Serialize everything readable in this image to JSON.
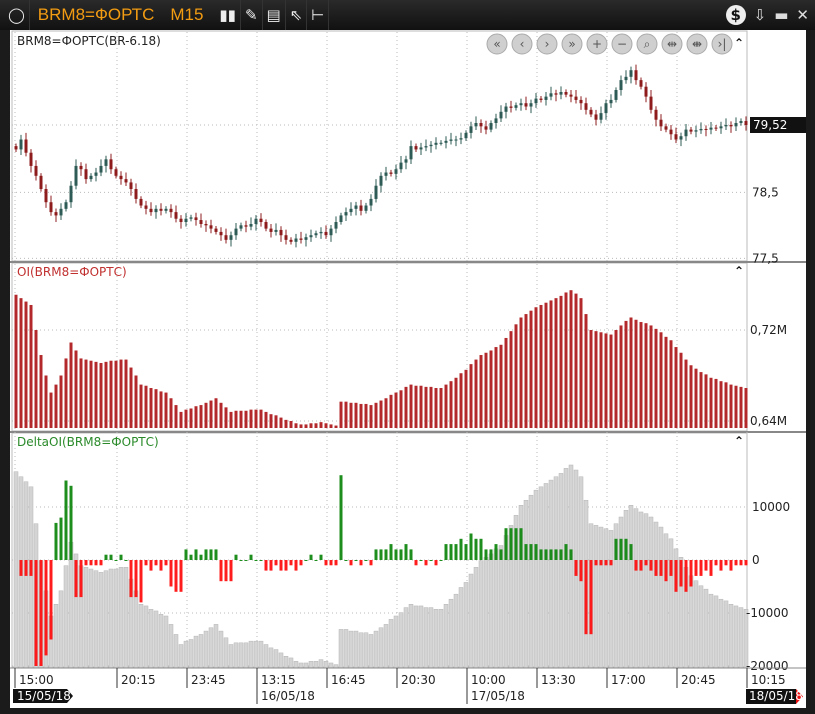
{
  "window": {
    "symbol": "BRM8=ФОРТС",
    "timeframe": "M15",
    "toolbar_icons": [
      "candlestick-icon",
      "pencil-icon",
      "chart-settings-icon",
      "cursor-icon",
      "level-icon"
    ],
    "right_icons": [
      "dollar-icon",
      "download-icon",
      "maximize-icon",
      "close-icon"
    ]
  },
  "colors": {
    "up": "#2e5b55",
    "down": "#8e1c1c",
    "oi": "#b3292b",
    "delta_up": "#118811",
    "delta_down": "#ff1010",
    "gray": "#d4d4d4",
    "title": "#f39c12"
  },
  "panels": {
    "price": {
      "title": "BRM8=ФОРТС(BR-6.18)",
      "ticks": [
        "78,5",
        "77,5"
      ],
      "tick_values": [
        78.5,
        77.5
      ],
      "last": "79,52",
      "last_value": 79.52
    },
    "oi": {
      "title": "OI(BRM8=ФОРТС)",
      "ticks": [
        "0,72M",
        "0,64M"
      ],
      "tick_values": [
        0.72,
        0.64
      ]
    },
    "delta": {
      "title": "DeltaOI(BRM8=ФОРТС)",
      "ticks": [
        "10000",
        "0",
        "-10000",
        "-20000"
      ],
      "tick_values": [
        10000,
        0,
        -10000,
        -20000
      ]
    }
  },
  "nav_buttons": [
    "scroll-start",
    "scroll-left",
    "scroll-right",
    "scroll-end",
    "zoom-in",
    "zoom-out",
    "zoom-fit",
    "compress",
    "expand",
    "go-last"
  ],
  "xaxis": {
    "times": [
      "15:00",
      "20:15",
      "23:45",
      "13:15",
      "16:45",
      "20:30",
      "10:00",
      "13:30",
      "17:00",
      "20:45",
      "10:15"
    ],
    "dates": [
      "15/05/18",
      "16/05/18",
      "17/05/18",
      "18/05/18"
    ]
  },
  "chart_data": {
    "type": "candlestick",
    "closes": [
      79.15,
      79.3,
      79.1,
      78.9,
      78.75,
      78.55,
      78.35,
      78.2,
      78.15,
      78.25,
      78.35,
      78.6,
      78.9,
      78.85,
      78.7,
      78.75,
      78.8,
      78.9,
      79.0,
      78.85,
      78.75,
      78.7,
      78.65,
      78.55,
      78.4,
      78.3,
      78.25,
      78.2,
      78.25,
      78.22,
      78.25,
      78.2,
      78.1,
      78.05,
      78.1,
      78.12,
      78.08,
      78.02,
      78.0,
      77.95,
      77.9,
      77.85,
      77.78,
      77.85,
      77.95,
      78.0,
      77.98,
      78.02,
      78.1,
      78.05,
      77.95,
      77.9,
      77.93,
      77.85,
      77.78,
      77.75,
      77.8,
      77.78,
      77.82,
      77.85,
      77.88,
      77.9,
      77.85,
      77.95,
      78.05,
      78.15,
      78.2,
      78.25,
      78.3,
      78.22,
      78.3,
      78.4,
      78.6,
      78.75,
      78.8,
      78.78,
      78.85,
      78.95,
      79.0,
      79.2,
      79.15,
      79.18,
      79.2,
      79.22,
      79.25,
      79.25,
      79.28,
      79.3,
      79.3,
      79.32,
      79.4,
      79.5,
      79.55,
      79.5,
      79.45,
      79.55,
      79.62,
      79.72,
      79.8,
      79.78,
      79.82,
      79.85,
      79.8,
      79.85,
      79.92,
      79.9,
      79.95,
      80.0,
      79.98,
      80.02,
      79.98,
      79.95,
      79.9,
      79.85,
      79.75,
      79.68,
      79.6,
      79.7,
      79.85,
      79.9,
      80.05,
      80.2,
      80.25,
      80.35,
      80.2,
      80.1,
      79.95,
      79.75,
      79.6,
      79.5,
      79.45,
      79.38,
      79.3,
      79.35,
      79.45,
      79.42,
      79.44,
      79.46,
      79.45,
      79.48,
      79.47,
      79.5,
      79.52,
      79.5,
      79.55,
      79.58,
      79.52
    ],
    "oi_millions": [
      0.751,
      0.748,
      0.745,
      0.742,
      0.72,
      0.698,
      0.68,
      0.665,
      0.672,
      0.68,
      0.695,
      0.709,
      0.702,
      0.695,
      0.694,
      0.693,
      0.692,
      0.691,
      0.692,
      0.693,
      0.693,
      0.694,
      0.694,
      0.687,
      0.68,
      0.672,
      0.671,
      0.669,
      0.668,
      0.666,
      0.665,
      0.66,
      0.654,
      0.648,
      0.65,
      0.651,
      0.653,
      0.654,
      0.656,
      0.658,
      0.66,
      0.656,
      0.652,
      0.648,
      0.649,
      0.649,
      0.649,
      0.65,
      0.65,
      0.65,
      0.648,
      0.646,
      0.645,
      0.643,
      0.641,
      0.64,
      0.638,
      0.637,
      0.637,
      0.638,
      0.638,
      0.639,
      0.638,
      0.637,
      0.636,
      0.657,
      0.657,
      0.656,
      0.656,
      0.655,
      0.655,
      0.654,
      0.656,
      0.658,
      0.66,
      0.663,
      0.665,
      0.667,
      0.67,
      0.672,
      0.671,
      0.671,
      0.67,
      0.67,
      0.669,
      0.669,
      0.672,
      0.675,
      0.678,
      0.682,
      0.685,
      0.69,
      0.694,
      0.698,
      0.7,
      0.702,
      0.705,
      0.707,
      0.713,
      0.719,
      0.725,
      0.731,
      0.734,
      0.737,
      0.74,
      0.742,
      0.744,
      0.746,
      0.748,
      0.75,
      0.753,
      0.755,
      0.752,
      0.748,
      0.734,
      0.72,
      0.719,
      0.718,
      0.717,
      0.716,
      0.72,
      0.724,
      0.728,
      0.731,
      0.729,
      0.727,
      0.726,
      0.724,
      0.721,
      0.718,
      0.714,
      0.711,
      0.705,
      0.7,
      0.694,
      0.689,
      0.686,
      0.683,
      0.681,
      0.678,
      0.677,
      0.675,
      0.674,
      0.672,
      0.671,
      0.67,
      0.669
    ],
    "price_range": [
      77.45,
      80.45
    ],
    "oi_range": [
      0.634,
      0.76
    ],
    "delta_range": [
      -20000,
      16000
    ],
    "grid": true
  }
}
